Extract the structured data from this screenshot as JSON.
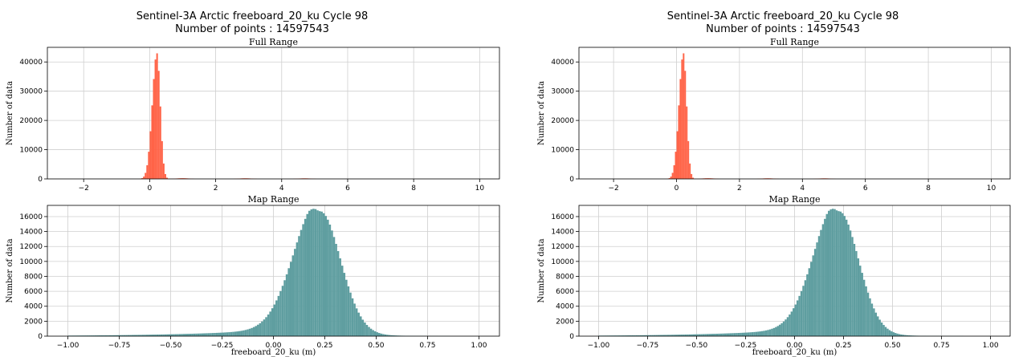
{
  "colors": {
    "full_range": "#ff6347",
    "map_range": "#5f9ea0",
    "grid": "#cfcfcf"
  },
  "chart_data": [
    {
      "type": "bar",
      "title": "Sentinel-3A Arctic freeboard_20_ku Cycle 98",
      "subtitle": "Number of points : 14597543",
      "panel_title": "Full Range",
      "xlabel": "",
      "ylabel": "Number of data",
      "xlim": [
        -3.1,
        10.6
      ],
      "ylim": [
        0,
        45000
      ],
      "xticks": [
        -2,
        0,
        2,
        4,
        6,
        8,
        10
      ],
      "yticks": [
        0,
        10000,
        20000,
        30000,
        40000
      ],
      "grid": true,
      "bin_width": 0.05,
      "center": 0.22,
      "peak": 43000,
      "spread_left": 0.14,
      "spread_right": 0.1,
      "side_bumps": [
        {
          "x": 1.0,
          "value": 250
        },
        {
          "x": 2.9,
          "value": 220
        },
        {
          "x": 4.7,
          "value": 200
        }
      ]
    },
    {
      "type": "bar",
      "title": "",
      "subtitle": "",
      "panel_title": "Map Range",
      "xlabel": "freeboard_20_ku (m)",
      "ylabel": "Number of data",
      "xlim": [
        -1.1,
        1.1
      ],
      "ylim": [
        0,
        17500
      ],
      "xticks": [
        -1.0,
        -0.75,
        -0.5,
        -0.25,
        0.0,
        0.25,
        0.5,
        0.75,
        1.0
      ],
      "yticks": [
        0,
        2000,
        4000,
        6000,
        8000,
        10000,
        12000,
        14000,
        16000
      ],
      "grid": true,
      "bin_width": 0.01,
      "bin_range": [
        -1.0,
        1.0
      ],
      "center": 0.22,
      "peak": 16700,
      "spread_left": 0.12,
      "spread_right": 0.105,
      "tail_left": 0.4,
      "tail_right": 0.18
    },
    {
      "type": "bar",
      "title": "Sentinel-3A Arctic freeboard_20_ku Cycle 98",
      "subtitle": "Number of points : 14597543",
      "panel_title": "Full Range",
      "xlabel": "",
      "ylabel": "Number of data",
      "xlim": [
        -3.1,
        10.6
      ],
      "ylim": [
        0,
        45000
      ],
      "xticks": [
        -2,
        0,
        2,
        4,
        6,
        8,
        10
      ],
      "yticks": [
        0,
        10000,
        20000,
        30000,
        40000
      ],
      "grid": true,
      "bin_width": 0.05,
      "center": 0.22,
      "peak": 43000,
      "spread_left": 0.14,
      "spread_right": 0.1,
      "side_bumps": [
        {
          "x": 1.0,
          "value": 250
        },
        {
          "x": 2.9,
          "value": 220
        },
        {
          "x": 4.7,
          "value": 200
        }
      ]
    },
    {
      "type": "bar",
      "title": "",
      "subtitle": "",
      "panel_title": "Map Range",
      "xlabel": "freeboard_20_ku (m)",
      "ylabel": "Number of data",
      "xlim": [
        -1.1,
        1.1
      ],
      "ylim": [
        0,
        17500
      ],
      "xticks": [
        -1.0,
        -0.75,
        -0.5,
        -0.25,
        0.0,
        0.25,
        0.5,
        0.75,
        1.0
      ],
      "yticks": [
        0,
        2000,
        4000,
        6000,
        8000,
        10000,
        12000,
        14000,
        16000
      ],
      "grid": true,
      "bin_width": 0.01,
      "bin_range": [
        -1.0,
        1.0
      ],
      "center": 0.22,
      "peak": 16700,
      "spread_left": 0.12,
      "spread_right": 0.105,
      "tail_left": 0.4,
      "tail_right": 0.18
    }
  ]
}
